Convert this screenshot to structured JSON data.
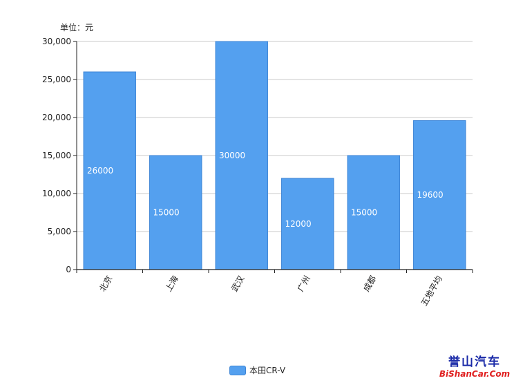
{
  "unit_label": "单位：元",
  "colors": {
    "bar": "#54a0ef",
    "bar_stroke": "#3f86d6",
    "grid": "#c8c8c8",
    "axis": "#222222"
  },
  "chart_data": {
    "type": "bar",
    "categories": [
      "北京",
      "上海",
      "武汉",
      "广州",
      "成都",
      "五地平均"
    ],
    "series": [
      {
        "name": "本田CR-V",
        "values": [
          26000,
          15000,
          30000,
          12000,
          15000,
          19600
        ]
      }
    ],
    "data_labels": [
      "26000",
      "15000",
      "30000",
      "12000",
      "15000",
      "19600"
    ],
    "y_ticks": [
      0,
      5000,
      10000,
      15000,
      20000,
      25000,
      30000
    ],
    "y_tick_labels": [
      "0",
      "5,000",
      "10,000",
      "15,000",
      "20,000",
      "25,000",
      "30,000"
    ],
    "ylim": [
      0,
      30000
    ],
    "grid": true,
    "legend_position": "bottom-center"
  },
  "legend": {
    "label": "本田CR-V"
  },
  "watermark": {
    "line1": "誉山汽车",
    "line2": "BiShanCar.Com"
  }
}
